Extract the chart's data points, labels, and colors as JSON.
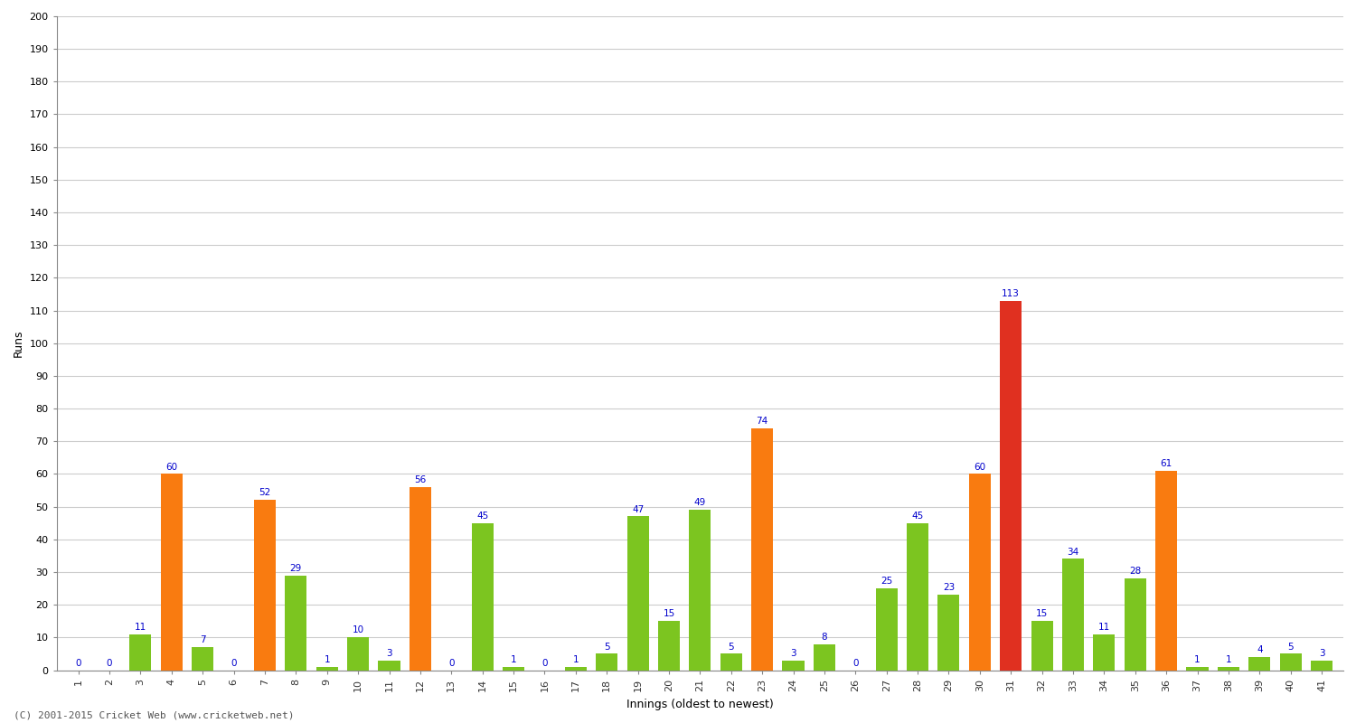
{
  "innings": [
    1,
    2,
    3,
    4,
    5,
    6,
    7,
    8,
    9,
    10,
    11,
    12,
    13,
    14,
    15,
    16,
    17,
    18,
    19,
    20,
    21,
    22,
    23,
    24,
    25,
    26,
    27,
    28,
    29,
    30,
    31,
    32,
    33,
    34,
    35,
    36,
    37,
    38,
    39,
    40,
    41
  ],
  "values": [
    0,
    0,
    11,
    60,
    7,
    0,
    52,
    29,
    1,
    10,
    3,
    56,
    0,
    45,
    1,
    0,
    1,
    5,
    47,
    15,
    49,
    5,
    74,
    3,
    8,
    0,
    25,
    45,
    23,
    60,
    113,
    15,
    34,
    11,
    28,
    61,
    1,
    1,
    4,
    5,
    3
  ],
  "colors": [
    "#7cc520",
    "#7cc520",
    "#7cc520",
    "#f97b10",
    "#7cc520",
    "#7cc520",
    "#f97b10",
    "#7cc520",
    "#7cc520",
    "#7cc520",
    "#7cc520",
    "#f97b10",
    "#7cc520",
    "#7cc520",
    "#7cc520",
    "#7cc520",
    "#7cc520",
    "#7cc520",
    "#7cc520",
    "#7cc520",
    "#7cc520",
    "#7cc520",
    "#f97b10",
    "#7cc520",
    "#7cc520",
    "#7cc520",
    "#7cc520",
    "#7cc520",
    "#7cc520",
    "#f97b10",
    "#e03020",
    "#7cc520",
    "#7cc520",
    "#7cc520",
    "#7cc520",
    "#f97b10",
    "#7cc520",
    "#7cc520",
    "#7cc520",
    "#7cc520",
    "#7cc520"
  ],
  "xlabel": "Innings (oldest to newest)",
  "ylabel": "Runs",
  "ylim": [
    0,
    200
  ],
  "yticks": [
    0,
    10,
    20,
    30,
    40,
    50,
    60,
    70,
    80,
    90,
    100,
    110,
    120,
    130,
    140,
    150,
    160,
    170,
    180,
    190,
    200
  ],
  "background_color": "#ffffff",
  "grid_color": "#cccccc",
  "label_color": "#0000cc",
  "label_fontsize": 7.5,
  "footer": "(C) 2001-2015 Cricket Web (www.cricketweb.net)"
}
